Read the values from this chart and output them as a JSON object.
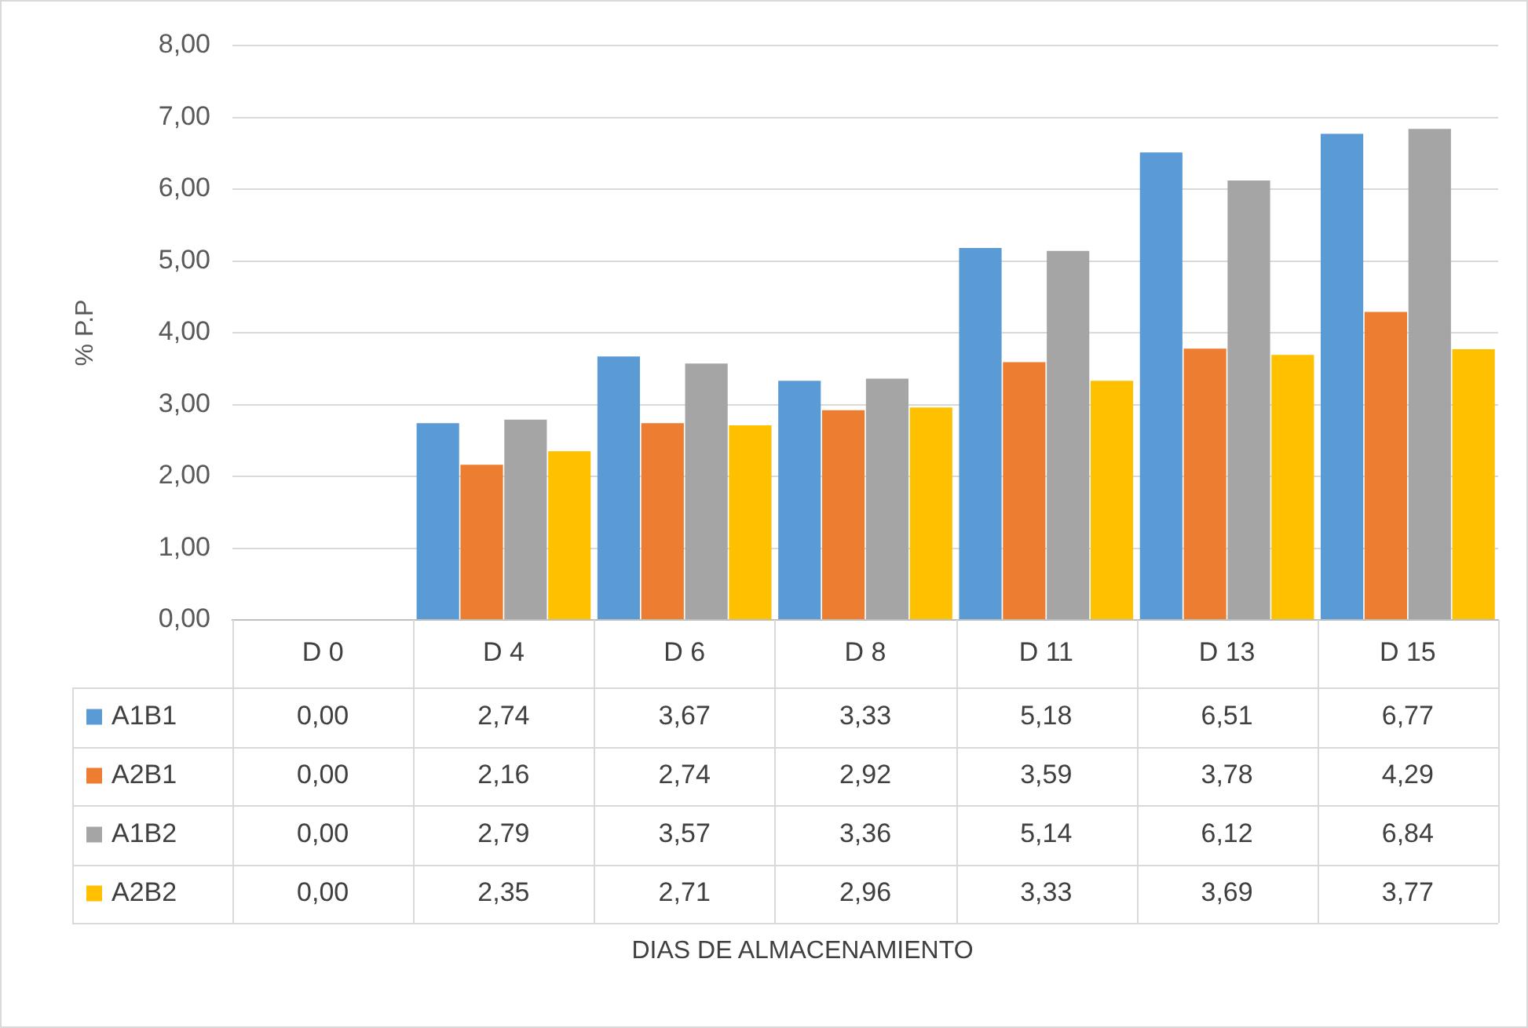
{
  "chart_data": {
    "type": "bar",
    "ylabel": "% P.P",
    "annotations": [
      "DIAS DE ALMACENAMIENTO"
    ],
    "categories": [
      "D 0",
      "D 4",
      "D 6",
      "D 8",
      "D 11",
      "D 13",
      "D 15"
    ],
    "series": [
      {
        "name": "A1B1",
        "color": "#5b9bd5",
        "values": [
          0,
          2.74,
          3.67,
          3.33,
          5.18,
          6.51,
          6.77
        ],
        "value_labels": [
          "0,00",
          "2,74",
          "3,67",
          "3,33",
          "5,18",
          "6,51",
          "6,77"
        ]
      },
      {
        "name": "A2B1",
        "color": "#ed7d31",
        "values": [
          0,
          2.16,
          2.74,
          2.92,
          3.59,
          3.78,
          4.29
        ],
        "value_labels": [
          "0,00",
          "2,16",
          "2,74",
          "2,92",
          "3,59",
          "3,78",
          "4,29"
        ]
      },
      {
        "name": "A1B2",
        "color": "#a5a5a5",
        "values": [
          0,
          2.79,
          3.57,
          3.36,
          5.14,
          6.12,
          6.84
        ],
        "value_labels": [
          "0,00",
          "2,79",
          "3,57",
          "3,36",
          "5,14",
          "6,12",
          "6,84"
        ]
      },
      {
        "name": "A2B2",
        "color": "#ffc000",
        "values": [
          0,
          2.35,
          2.71,
          2.96,
          3.33,
          3.69,
          3.77
        ],
        "value_labels": [
          "0,00",
          "2,35",
          "2,71",
          "2,96",
          "3,33",
          "3,69",
          "3,77"
        ]
      }
    ],
    "ylim": [
      0,
      8
    ],
    "yticks": [
      {
        "value": 0,
        "label": "0,00"
      },
      {
        "value": 1,
        "label": "1,00"
      },
      {
        "value": 2,
        "label": "2,00"
      },
      {
        "value": 3,
        "label": "3,00"
      },
      {
        "value": 4,
        "label": "4,00"
      },
      {
        "value": 5,
        "label": "5,00"
      },
      {
        "value": 6,
        "label": "6,00"
      },
      {
        "value": 7,
        "label": "7,00"
      },
      {
        "value": 8,
        "label": "8,00"
      }
    ],
    "grid": "y",
    "legend": "bottom"
  }
}
